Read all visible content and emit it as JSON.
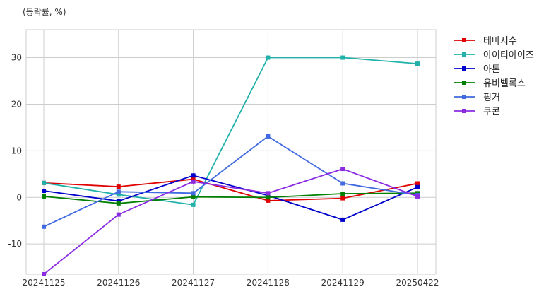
{
  "chart_data": {
    "type": "line",
    "unit_label": "(등락률, %)",
    "categories": [
      "20241125",
      "20241126",
      "20241127",
      "20241128",
      "20241129",
      "20250422"
    ],
    "ylim": [
      -16.5,
      36
    ],
    "yticks": [
      -10,
      0,
      10,
      20,
      30
    ],
    "grid": true,
    "legend_position": "right",
    "series": [
      {
        "name": "테마지수",
        "color": "#e00000",
        "values": [
          3.1,
          2.3,
          3.9,
          -0.7,
          -0.2,
          3.0
        ]
      },
      {
        "name": "아이티아이즈",
        "color": "#20b2aa",
        "values": [
          3.1,
          0.6,
          -1.6,
          30.0,
          30.0,
          28.7
        ]
      },
      {
        "name": "아톤",
        "color": "#0000cd",
        "values": [
          1.4,
          -0.8,
          4.7,
          0.4,
          -4.8,
          2.2
        ]
      },
      {
        "name": "유비벨록스",
        "color": "#008000",
        "values": [
          0.2,
          -1.3,
          0.1,
          0.0,
          0.8,
          0.9
        ]
      },
      {
        "name": "핑거",
        "color": "#4169e1",
        "values": [
          -6.3,
          1.2,
          0.9,
          13.1,
          3.0,
          0.5
        ]
      },
      {
        "name": "쿠콘",
        "color": "#8a2be2",
        "values": [
          -16.5,
          -3.7,
          3.4,
          0.9,
          6.1,
          0.2
        ]
      }
    ]
  }
}
